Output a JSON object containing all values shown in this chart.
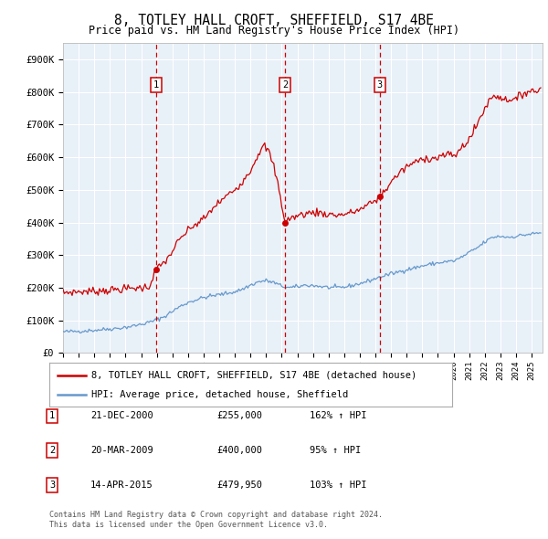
{
  "title": "8, TOTLEY HALL CROFT, SHEFFIELD, S17 4BE",
  "subtitle": "Price paid vs. HM Land Registry's House Price Index (HPI)",
  "legend_line1": "8, TOTLEY HALL CROFT, SHEFFIELD, S17 4BE (detached house)",
  "legend_line2": "HPI: Average price, detached house, Sheffield",
  "footer1": "Contains HM Land Registry data © Crown copyright and database right 2024.",
  "footer2": "This data is licensed under the Open Government Licence v3.0.",
  "transactions": [
    {
      "num": 1,
      "x": 2000.97,
      "price": 255000,
      "label": "21-DEC-2000",
      "pct": "162%",
      "dir": "↑"
    },
    {
      "num": 2,
      "x": 2009.22,
      "price": 400000,
      "label": "20-MAR-2009",
      "pct": "95%",
      "dir": "↑"
    },
    {
      "num": 3,
      "x": 2015.28,
      "price": 479950,
      "label": "14-APR-2015",
      "pct": "103%",
      "dir": "↑"
    }
  ],
  "hpi_color": "#6699cc",
  "price_color": "#cc0000",
  "plot_bg": "#e8f0f8",
  "ylim": [
    0,
    950000
  ],
  "xlim_start": 1995.0,
  "xlim_end": 2025.7
}
